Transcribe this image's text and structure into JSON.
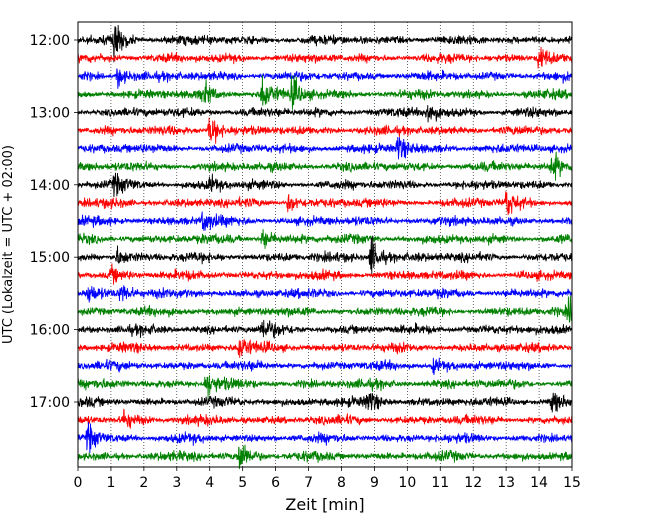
{
  "chart_data": {
    "type": "line",
    "subtype": "helicorder",
    "xlabel": "Zeit  [min]",
    "ylabel": "UTC (Lokalzeit = UTC + 02:00)",
    "xlim": [
      0,
      15
    ],
    "x_ticks": [
      0,
      1,
      2,
      3,
      4,
      5,
      6,
      7,
      8,
      9,
      10,
      11,
      12,
      13,
      14,
      15
    ],
    "x_tick_labels": [
      "0",
      "1",
      "2",
      "3",
      "4",
      "5",
      "6",
      "7",
      "8",
      "9",
      "10",
      "11",
      "12",
      "13",
      "14",
      "15"
    ],
    "y_tick_labels": [
      "12:00",
      "13:00",
      "14:00",
      "15:00",
      "16:00",
      "17:00"
    ],
    "line_interval_minutes": 15,
    "start_time": "12:00",
    "grid": "vertical dotted",
    "legend": false,
    "trace_colors": [
      "#000000",
      "#ff0000",
      "#0000ff",
      "#008000"
    ],
    "traces": [
      {
        "start": "12:00",
        "color": "#000000",
        "events": [
          [
            1.1,
            2.2
          ]
        ]
      },
      {
        "start": "12:15",
        "color": "#ff0000",
        "events": [
          [
            14.0,
            1.8
          ]
        ]
      },
      {
        "start": "12:30",
        "color": "#0000ff",
        "events": [
          [
            1.2,
            1.2
          ]
        ]
      },
      {
        "start": "12:45",
        "color": "#008000",
        "events": [
          [
            3.8,
            1.2
          ],
          [
            5.6,
            2.0
          ],
          [
            6.5,
            1.8
          ]
        ]
      },
      {
        "start": "13:00",
        "color": "#000000",
        "events": [
          [
            10.6,
            1.5
          ]
        ]
      },
      {
        "start": "13:15",
        "color": "#ff0000",
        "events": [
          [
            4.0,
            2.0
          ]
        ]
      },
      {
        "start": "13:30",
        "color": "#0000ff",
        "events": [
          [
            9.7,
            1.5
          ]
        ]
      },
      {
        "start": "13:45",
        "color": "#008000",
        "events": [
          [
            14.4,
            1.5
          ]
        ]
      },
      {
        "start": "14:00",
        "color": "#000000",
        "events": [
          [
            1.1,
            1.0
          ],
          [
            4.0,
            0.8
          ]
        ]
      },
      {
        "start": "14:15",
        "color": "#ff0000",
        "events": [
          [
            6.4,
            1.2
          ],
          [
            13.0,
            1.6
          ]
        ]
      },
      {
        "start": "14:30",
        "color": "#0000ff",
        "events": [
          [
            3.8,
            1.3
          ]
        ]
      },
      {
        "start": "14:45",
        "color": "#008000",
        "events": [
          [
            5.6,
            1.2
          ]
        ]
      },
      {
        "start": "15:00",
        "color": "#000000",
        "events": [
          [
            8.9,
            2.5
          ],
          [
            1.2,
            1.0
          ]
        ]
      },
      {
        "start": "15:15",
        "color": "#ff0000",
        "events": [
          [
            1.0,
            0.8
          ]
        ]
      },
      {
        "start": "15:30",
        "color": "#0000ff",
        "events": [
          [
            0.3,
            1.3
          ],
          [
            1.3,
            1.2
          ]
        ]
      },
      {
        "start": "15:45",
        "color": "#008000",
        "events": [
          [
            14.9,
            1.3
          ]
        ]
      },
      {
        "start": "16:00",
        "color": "#000000",
        "events": [
          [
            5.6,
            1.2
          ]
        ]
      },
      {
        "start": "16:15",
        "color": "#ff0000",
        "events": [
          [
            4.9,
            1.5
          ]
        ]
      },
      {
        "start": "16:30",
        "color": "#0000ff",
        "events": [
          [
            10.8,
            0.9
          ]
        ]
      },
      {
        "start": "16:45",
        "color": "#008000",
        "events": [
          [
            3.9,
            1.6
          ]
        ]
      },
      {
        "start": "17:00",
        "color": "#000000",
        "events": [
          [
            8.8,
            1.3
          ],
          [
            14.4,
            1.2
          ]
        ]
      },
      {
        "start": "17:15",
        "color": "#ff0000",
        "events": [
          [
            1.4,
            1.1
          ]
        ]
      },
      {
        "start": "17:30",
        "color": "#0000ff",
        "events": [
          [
            0.3,
            1.7
          ]
        ]
      },
      {
        "start": "17:45",
        "color": "#008000",
        "events": [
          [
            4.9,
            2.0
          ]
        ]
      }
    ]
  }
}
